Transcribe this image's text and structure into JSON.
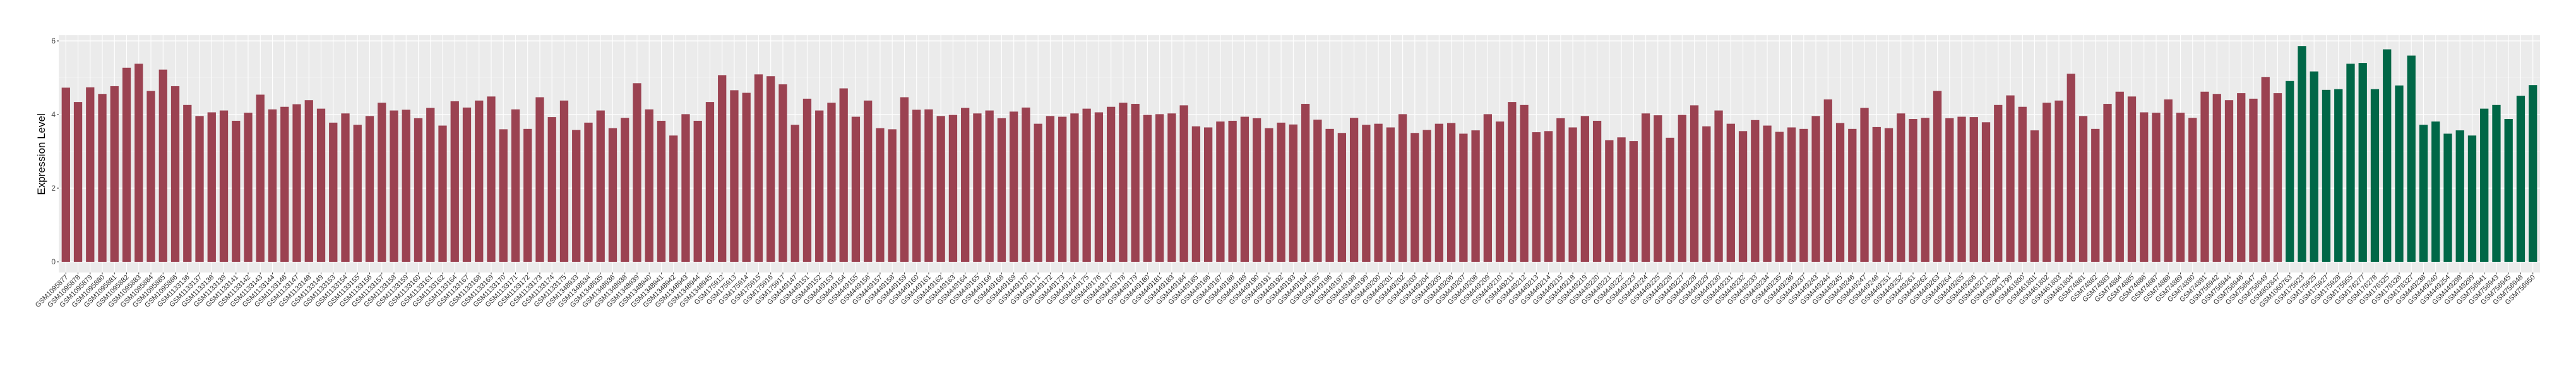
{
  "chart_data": {
    "type": "bar",
    "title": "",
    "xlabel": "",
    "ylabel": "Expression Level",
    "ylim": [
      0,
      6
    ],
    "yticks": [
      0,
      2,
      4,
      6
    ],
    "grid": true,
    "background": "#EBEBEB",
    "legend": "none",
    "series": [
      {
        "color": "#9B4251",
        "categories": [
          "GSM1095877",
          "GSM1095878",
          "GSM1095879",
          "GSM1095880",
          "GSM1095881",
          "GSM1095882",
          "GSM1095883",
          "GSM1095884",
          "GSM1095885",
          "GSM1095886",
          "GSM1133136",
          "GSM1133137",
          "GSM1133138",
          "GSM1133139",
          "GSM1133141",
          "GSM1133142",
          "GSM1133143",
          "GSM1133144",
          "GSM1133146",
          "GSM1133147",
          "GSM1133148",
          "GSM1133149",
          "GSM1133153",
          "GSM1133154",
          "GSM1133155",
          "GSM1133156",
          "GSM1133157",
          "GSM1133158",
          "GSM1133159",
          "GSM1133160",
          "GSM1133161",
          "GSM1133162",
          "GSM1133164",
          "GSM1133167",
          "GSM1133168",
          "GSM1133169",
          "GSM1133170",
          "GSM1133171",
          "GSM1133172",
          "GSM1133173",
          "GSM1133174",
          "GSM1133175",
          "GSM1348933",
          "GSM1348934",
          "GSM1348935",
          "GSM1348936",
          "GSM1348938",
          "GSM1348939",
          "GSM1348940",
          "GSM1348941",
          "GSM1348942",
          "GSM1348943",
          "GSM1348944",
          "GSM1348945",
          "GSM175912",
          "GSM175913",
          "GSM175914",
          "GSM175915",
          "GSM175916",
          "GSM175917",
          "GSM449147",
          "GSM449151",
          "GSM449152",
          "GSM449153",
          "GSM449154",
          "GSM449155",
          "GSM449156",
          "GSM449157",
          "GSM449158",
          "GSM449159",
          "GSM449160",
          "GSM449161",
          "GSM449162",
          "GSM449163",
          "GSM449164",
          "GSM449165",
          "GSM449166",
          "GSM449168",
          "GSM449169",
          "GSM449170",
          "GSM449171",
          "GSM449172",
          "GSM449173",
          "GSM449174",
          "GSM449175",
          "GSM449176",
          "GSM449177",
          "GSM449178",
          "GSM449179",
          "GSM449180",
          "GSM449181",
          "GSM449183",
          "GSM449184",
          "GSM449185",
          "GSM449186",
          "GSM449187",
          "GSM449188",
          "GSM449189",
          "GSM449190",
          "GSM449191",
          "GSM449192",
          "GSM449193",
          "GSM449194",
          "GSM449195",
          "GSM449196",
          "GSM449197",
          "GSM449198",
          "GSM449199",
          "GSM449200",
          "GSM449201",
          "GSM449202",
          "GSM449203",
          "GSM449204",
          "GSM449205",
          "GSM449206",
          "GSM449207",
          "GSM449208",
          "GSM449209",
          "GSM449210",
          "GSM449211",
          "GSM449212",
          "GSM449213",
          "GSM449214",
          "GSM449215",
          "GSM449218",
          "GSM449219",
          "GSM449220",
          "GSM449221",
          "GSM449222",
          "GSM449223",
          "GSM449224",
          "GSM449225",
          "GSM449226",
          "GSM449227",
          "GSM449228",
          "GSM449229",
          "GSM449230",
          "GSM449231",
          "GSM449232",
          "GSM449233",
          "GSM449234",
          "GSM449235",
          "GSM449236",
          "GSM449237",
          "GSM449243",
          "GSM449244",
          "GSM449245",
          "GSM449246",
          "GSM449247",
          "GSM449248",
          "GSM449251",
          "GSM449252",
          "GSM449261",
          "GSM449262",
          "GSM449263",
          "GSM449264",
          "GSM449265",
          "GSM449266",
          "GSM449271",
          "GSM449294",
          "GSM461799",
          "GSM461800",
          "GSM461801",
          "GSM461802",
          "GSM461803",
          "GSM461804",
          "GSM74881",
          "GSM74882",
          "GSM74883",
          "GSM74884",
          "GSM74885",
          "GSM74886",
          "GSM74887",
          "GSM74888",
          "GSM74889",
          "GSM74890",
          "GSM74891",
          "GSM756942",
          "GSM756944",
          "GSM756946",
          "GSM756947",
          "GSM756949",
          "GSM802847"
        ],
        "values": [
          4.73,
          4.34,
          4.74,
          4.56,
          4.77,
          5.27,
          5.38,
          4.64,
          5.22,
          4.77,
          4.26,
          3.96,
          4.06,
          4.11,
          3.83,
          4.05,
          4.54,
          4.14,
          4.21,
          4.28,
          4.39,
          4.16,
          3.78,
          4.03,
          3.72,
          3.96,
          4.32,
          4.11,
          4.13,
          3.9,
          4.18,
          3.7,
          4.36,
          4.19,
          4.38,
          4.49,
          3.6,
          4.14,
          3.61,
          4.47,
          3.93,
          4.38,
          3.58,
          3.78,
          4.11,
          3.63,
          3.91,
          4.85,
          4.14,
          3.83,
          3.43,
          4.01,
          3.83,
          4.34,
          5.07,
          4.66,
          4.59,
          5.09,
          5.04,
          4.82,
          3.72,
          4.43,
          4.11,
          4.32,
          4.71,
          3.94,
          4.38,
          3.63,
          3.6,
          4.47,
          4.13,
          4.14,
          3.96,
          3.99,
          4.18,
          4.03,
          4.11,
          3.9,
          4.08,
          4.19,
          3.75,
          3.96,
          3.94,
          4.03,
          4.16,
          4.06,
          4.21,
          4.32,
          4.29,
          3.99,
          4.01,
          4.03,
          4.25,
          3.68,
          3.65,
          3.81,
          3.83,
          3.94,
          3.9,
          3.63,
          3.78,
          3.73,
          4.29,
          3.86,
          3.61,
          3.5,
          3.91,
          3.72,
          3.75,
          3.65,
          4.01,
          3.5,
          3.58,
          3.75,
          3.77,
          3.48,
          3.57,
          4.01,
          3.81,
          4.34,
          4.26,
          3.52,
          3.55,
          3.9,
          3.65,
          3.96,
          3.83,
          3.3,
          3.38,
          3.28,
          4.03,
          3.98,
          3.37,
          3.99,
          4.25,
          3.68,
          4.11,
          3.75,
          3.55,
          3.85,
          3.7,
          3.53,
          3.65,
          3.61,
          3.96,
          4.41,
          3.77,
          3.61,
          4.18,
          3.66,
          3.63,
          4.03,
          3.88,
          3.91,
          4.64,
          3.9,
          3.94,
          3.93,
          3.79,
          4.26,
          4.52,
          4.21,
          3.57,
          4.32,
          4.38,
          5.11,
          3.96,
          3.61,
          4.29,
          4.62,
          4.49,
          4.06,
          4.05,
          4.41,
          4.05,
          3.91,
          4.62,
          4.56,
          4.39,
          4.58,
          4.43,
          5.02,
          4.58
        ]
      },
      {
        "color": "#006747",
        "categories": [
          "GSM1060763",
          "GSM175923",
          "GSM175925",
          "GSM175927",
          "GSM175928",
          "GSM175955",
          "GSM176277",
          "GSM176278",
          "GSM176325",
          "GSM176326",
          "GSM176327",
          "GSM449238",
          "GSM449240",
          "GSM449254",
          "GSM449298",
          "GSM449299",
          "GSM756941",
          "GSM756943",
          "GSM756945",
          "GSM756948",
          "GSM756950"
        ],
        "values": [
          4.91,
          5.86,
          5.17,
          4.67,
          4.69,
          5.38,
          5.4,
          4.69,
          5.77,
          4.79,
          5.6,
          3.72,
          3.81,
          3.48,
          3.57,
          3.43,
          4.16,
          4.26,
          3.88,
          4.51,
          4.8
        ]
      }
    ]
  }
}
